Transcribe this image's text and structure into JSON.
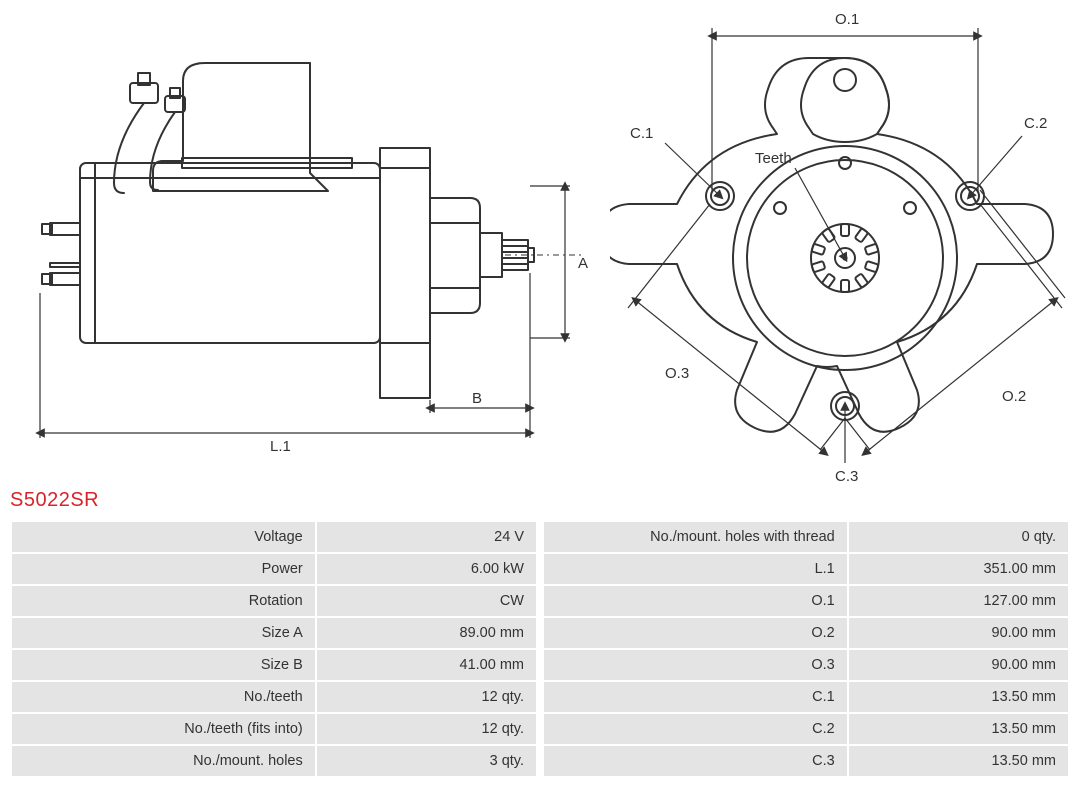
{
  "product_code": "S5022SR",
  "colors": {
    "stroke": "#333333",
    "title": "#d8232a",
    "row_bg": "#e4e4e4",
    "text": "#333333",
    "bg": "#ffffff"
  },
  "diagram_labels": {
    "side": {
      "L1": "L.1",
      "A": "A",
      "B": "B"
    },
    "front": {
      "O1": "O.1",
      "O2": "O.2",
      "O3": "O.3",
      "C1": "C.1",
      "C2": "C.2",
      "C3": "C.3",
      "Teeth": "Teeth"
    }
  },
  "specs_left": [
    {
      "label": "Voltage",
      "value": "24 V"
    },
    {
      "label": "Power",
      "value": "6.00 kW"
    },
    {
      "label": "Rotation",
      "value": "CW"
    },
    {
      "label": "Size A",
      "value": "89.00 mm"
    },
    {
      "label": "Size B",
      "value": "41.00 mm"
    },
    {
      "label": "No./teeth",
      "value": "12 qty."
    },
    {
      "label": "No./teeth (fits into)",
      "value": "12 qty."
    },
    {
      "label": "No./mount. holes",
      "value": "3 qty."
    }
  ],
  "specs_right": [
    {
      "label": "No./mount. holes with thread",
      "value": "0 qty."
    },
    {
      "label": "L.1",
      "value": "351.00 mm"
    },
    {
      "label": "O.1",
      "value": "127.00 mm"
    },
    {
      "label": "O.2",
      "value": "90.00 mm"
    },
    {
      "label": "O.3",
      "value": "90.00 mm"
    },
    {
      "label": "C.1",
      "value": "13.50 mm"
    },
    {
      "label": "C.2",
      "value": "13.50 mm"
    },
    {
      "label": "C.3",
      "value": "13.50 mm"
    }
  ],
  "style": {
    "font_size_table": 14.5,
    "font_size_label": 15,
    "font_size_title": 20,
    "stroke_width_main": 2,
    "stroke_width_dim": 1.2,
    "arrow_size": 5,
    "dash": "4 4"
  }
}
